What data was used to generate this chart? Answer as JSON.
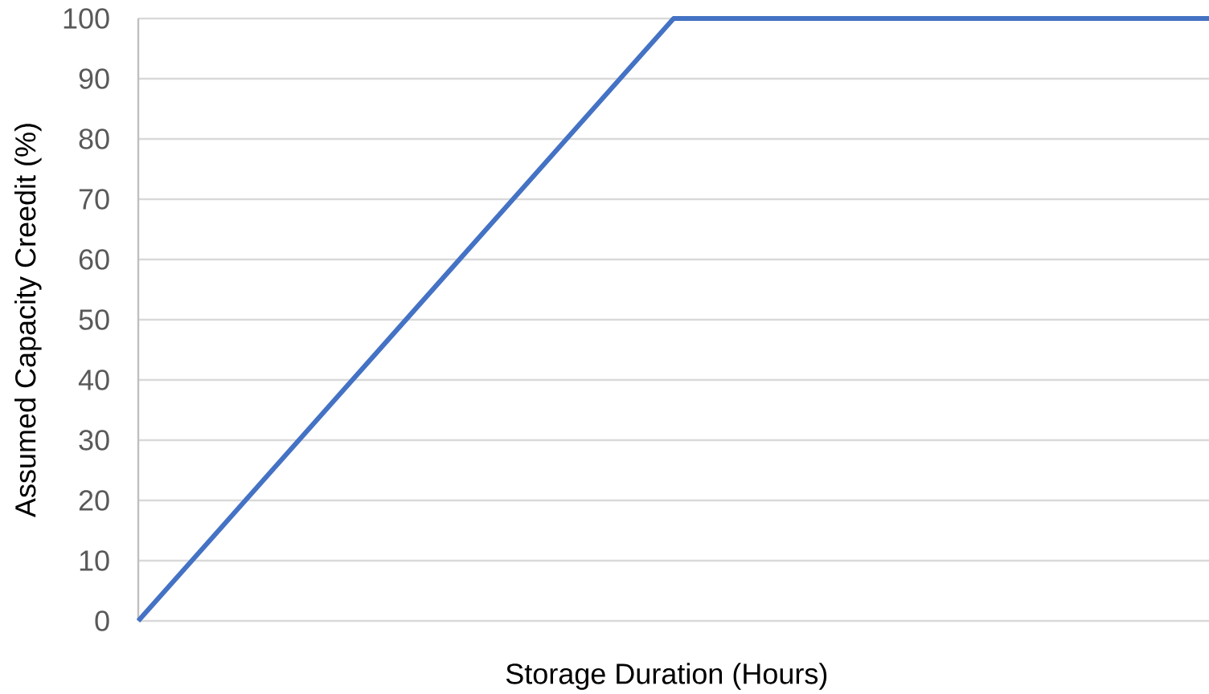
{
  "chart_data": {
    "type": "line",
    "xlabel": "Storage Duration (Hours)",
    "ylabel": "Assumed Capacity Creedit (%)",
    "categories": [
      null,
      null,
      null
    ],
    "values": [
      0,
      100,
      100
    ],
    "color": "#4472c4",
    "ylim": [
      0,
      100
    ],
    "yticks": [
      0,
      10,
      20,
      30,
      40,
      50,
      60,
      70,
      80,
      90,
      100
    ],
    "grid": "y",
    "marker": "none",
    "line_style": "solid"
  }
}
